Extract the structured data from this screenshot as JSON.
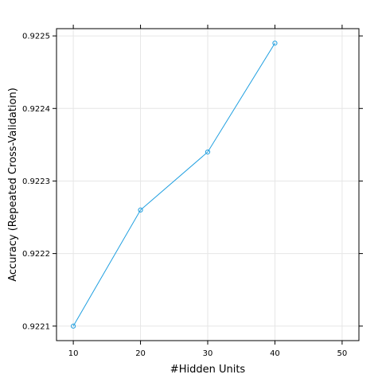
{
  "chart_data": {
    "type": "line",
    "xlabel": "#Hidden Units",
    "ylabel": "Accuracy (Repeated Cross-Validation)",
    "x": [
      10,
      20,
      30,
      40
    ],
    "series": [
      {
        "values": [
          0.9221,
          0.92226,
          0.92234,
          0.92249
        ]
      }
    ],
    "xlim": [
      7.5,
      52.5
    ],
    "ylim": [
      0.92208,
      0.92251
    ],
    "x_ticks": [
      10,
      20,
      30,
      40,
      50
    ],
    "x_tick_labels": [
      "10",
      "20",
      "30",
      "40",
      "50"
    ],
    "y_ticks": [
      0.9221,
      0.9222,
      0.9223,
      0.9224,
      0.9225
    ],
    "y_tick_labels": [
      "0.9221",
      "0.9222",
      "0.9223",
      "0.9224",
      "0.9225"
    ],
    "grid": true,
    "legend": "none",
    "colors": {
      "series": "#1f9fe0",
      "grid": "#e6e6e6",
      "frame": "#000000"
    }
  }
}
